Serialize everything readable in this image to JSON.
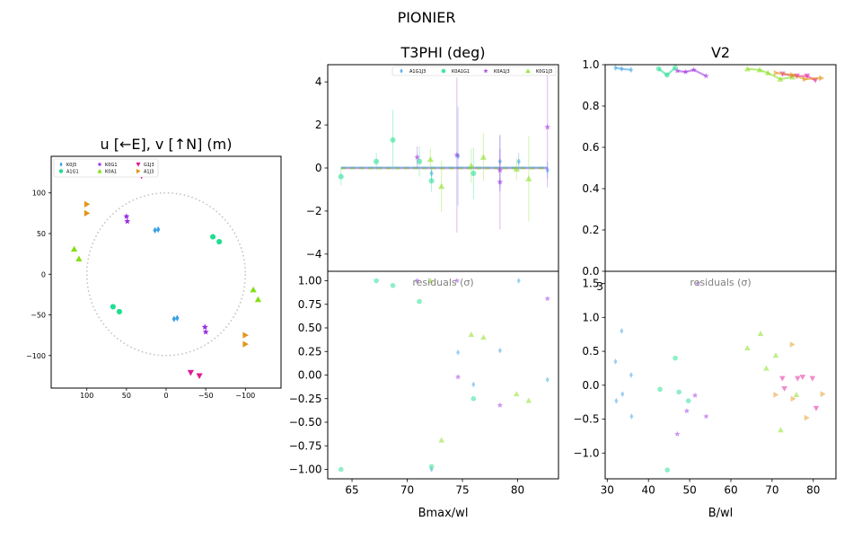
{
  "figure": {
    "title": "PIONIER"
  },
  "chart_data": [
    {
      "id": "uv",
      "type": "scatter",
      "title": "u [←E], v [↑N] (m)",
      "xlim": [
        145,
        -145
      ],
      "ylim": [
        -140,
        145
      ],
      "xticks": [
        "100",
        "50",
        "0",
        "−50",
        "−100"
      ],
      "xtick_values": [
        100,
        50,
        0,
        -50,
        -100
      ],
      "yticks": [
        "100",
        "50",
        "0",
        "−50",
        "−100"
      ],
      "ytick_values": [
        100,
        50,
        0,
        -50,
        -100
      ],
      "circle_radius": 100,
      "legend_position": "upper left",
      "series": [
        {
          "name": "K0J3",
          "marker": "diamond",
          "color": "#3aa0e6",
          "u": [
            14,
            10,
            -14,
            -10
          ],
          "v": [
            54,
            55,
            -54,
            -55
          ]
        },
        {
          "name": "A1G1",
          "marker": "circle",
          "color": "#1ddf8f",
          "u": [
            67,
            59,
            -59,
            -67
          ],
          "v": [
            -40,
            -46,
            46,
            40
          ]
        },
        {
          "name": "K0G1",
          "marker": "star",
          "color": "#9a2de0",
          "u": [
            49,
            50,
            -50,
            -49
          ],
          "v": [
            65,
            71,
            -71,
            -65
          ]
        },
        {
          "name": "K0A1",
          "marker": "triangle-up",
          "color": "#84de16",
          "u": [
            116,
            110,
            -110,
            -116
          ],
          "v": [
            31,
            19,
            -19,
            -31
          ]
        },
        {
          "name": "G1J3",
          "marker": "triangle-down",
          "color": "#e01a96",
          "u": [
            37,
            31,
            -31,
            -42
          ],
          "v": [
            125,
            121,
            -121,
            -125
          ]
        },
        {
          "name": "A1J3",
          "marker": "triangle-right",
          "color": "#e3951a",
          "u": [
            100,
            100,
            -100,
            -100
          ],
          "v": [
            86,
            75,
            -75,
            -86
          ]
        }
      ]
    },
    {
      "id": "t3phi",
      "type": "scatter",
      "title": "T3PHI (deg)",
      "ylim": [
        -4.8,
        4.8
      ],
      "yticks": [
        "4",
        "2",
        "0",
        "−2",
        "−4"
      ],
      "ytick_values": [
        4,
        2,
        0,
        -2,
        -4
      ],
      "legend_position": "upper right",
      "series": [
        {
          "name": "A1G1J3",
          "marker": "diamond",
          "color": "#3aa0e6",
          "x": [
            72.2,
            74.6,
            78.4,
            80.1,
            82.7
          ],
          "y": [
            -0.25,
            0.55,
            0.3,
            0.3,
            -0.1
          ],
          "err": [
            0.3,
            2.3,
            1.2,
            0.4,
            0.4
          ]
        },
        {
          "name": "K0A1G1",
          "marker": "circle",
          "color": "#1ddf8f",
          "x": [
            64.0,
            67.2,
            68.7,
            71.1,
            72.2,
            76.0
          ],
          "y": [
            -0.4,
            0.3,
            1.3,
            0.3,
            -0.6,
            -0.25
          ],
          "err": [
            0.4,
            0.4,
            1.4,
            0.7,
            0.5,
            1.2
          ]
        },
        {
          "name": "K0A1J3",
          "marker": "star",
          "color": "#9a2de0",
          "x": [
            70.9,
            74.5,
            78.4,
            78.4,
            82.7
          ],
          "y": [
            0.5,
            0.6,
            -0.1,
            -0.65,
            1.9
          ],
          "err": [
            0.5,
            3.6,
            1.0,
            2.2,
            2.8
          ]
        },
        {
          "name": "K0G1J3",
          "marker": "triangle-up",
          "color": "#84de16",
          "x": [
            72.1,
            73.1,
            75.8,
            76.9,
            79.9,
            81.0
          ],
          "y": [
            0.4,
            -0.85,
            0.1,
            0.5,
            -0.05,
            -0.5
          ],
          "err": [
            0.5,
            1.2,
            0.8,
            1.1,
            0.5,
            2.0
          ]
        }
      ],
      "model": {
        "y": 0
      }
    },
    {
      "id": "t3phi_resid",
      "type": "scatter",
      "ylabel_note": "residuals (σ)",
      "xlabel": "Bmax/wl",
      "xlim": [
        62.8,
        83.7
      ],
      "ylim": [
        -1.1,
        1.1
      ],
      "xticks": [
        "65",
        "70",
        "75",
        "80"
      ],
      "xtick_values": [
        65,
        70,
        75,
        80
      ],
      "yticks": [
        "1.00",
        "0.75",
        "0.50",
        "0.25",
        "0.00",
        "−0.25",
        "−0.50",
        "−0.75",
        "−1.00"
      ],
      "ytick_values": [
        1,
        0.75,
        0.5,
        0.25,
        0,
        -0.25,
        -0.5,
        -0.75,
        -1
      ],
      "series": [
        {
          "name": "A1G1J3",
          "marker": "diamond",
          "color": "#3aa0e6",
          "x": [
            72.2,
            74.6,
            76.0,
            78.4,
            80.1,
            82.7
          ],
          "y": [
            -1.0,
            0.24,
            -0.1,
            0.26,
            1.0,
            -0.05
          ]
        },
        {
          "name": "K0A1G1",
          "marker": "circle",
          "color": "#1ddf8f",
          "x": [
            64.0,
            67.2,
            68.7,
            71.1,
            72.2,
            76.0
          ],
          "y": [
            -1.0,
            1.0,
            0.95,
            0.78,
            -0.97,
            -0.25
          ]
        },
        {
          "name": "K0A1J3",
          "marker": "star",
          "color": "#9a2de0",
          "x": [
            70.9,
            74.5,
            74.6,
            78.4,
            82.7
          ],
          "y": [
            1.0,
            1.0,
            -0.02,
            -0.32,
            0.81
          ]
        },
        {
          "name": "K0G1J3",
          "marker": "triangle-up",
          "color": "#84de16",
          "x": [
            72.1,
            73.1,
            75.8,
            76.9,
            79.9,
            81.0
          ],
          "y": [
            1.0,
            -0.69,
            0.43,
            0.4,
            -0.2,
            -0.27
          ]
        }
      ]
    },
    {
      "id": "v2",
      "type": "scatter",
      "title": "V2",
      "ylim": [
        0.0,
        1.0
      ],
      "yticks": [
        "1.0",
        "0.8",
        "0.6",
        "0.4",
        "0.2",
        "0.0"
      ],
      "ytick_values": [
        1.0,
        0.8,
        0.6,
        0.4,
        0.2,
        0.0
      ],
      "series": [
        {
          "name": "K0J3",
          "marker": "diamond",
          "color": "#3aa0e6",
          "x": [
            32.0,
            33.5,
            35.8
          ],
          "y": [
            0.985,
            0.98,
            0.975
          ]
        },
        {
          "name": "A1G1",
          "marker": "circle",
          "color": "#1ddf8f",
          "x": [
            42.5,
            44.5,
            46.5
          ],
          "y": [
            0.98,
            0.95,
            0.985
          ]
        },
        {
          "name": "K0G1",
          "marker": "star",
          "color": "#9a2de0",
          "x": [
            47.0,
            49.0,
            51.0,
            54.0
          ],
          "y": [
            0.97,
            0.965,
            0.975,
            0.945
          ]
        },
        {
          "name": "K0A1",
          "marker": "triangle-up",
          "color": "#84de16",
          "x": [
            64.0,
            67.0,
            69.0,
            72.0,
            75.0
          ],
          "y": [
            0.98,
            0.975,
            0.96,
            0.93,
            0.94
          ]
        },
        {
          "name": "G1J3",
          "marker": "triangle-down",
          "color": "#e01a96",
          "x": [
            72.5,
            76.0,
            78.5,
            80.5
          ],
          "y": [
            0.955,
            0.945,
            0.945,
            0.925
          ]
        },
        {
          "name": "A1J3",
          "marker": "triangle-right",
          "color": "#e3951a",
          "x": [
            71.0,
            75.0,
            78.0,
            82.0
          ],
          "y": [
            0.96,
            0.95,
            0.93,
            0.935
          ]
        }
      ]
    },
    {
      "id": "v2_resid",
      "type": "scatter",
      "ylabel_note": "residuals (σ)",
      "xlabel": "B/wl",
      "xlim": [
        29.5,
        85.5
      ],
      "ylim": [
        -1.38,
        1.68
      ],
      "xticks": [
        "30",
        "40",
        "50",
        "60",
        "70",
        "80"
      ],
      "xtick_values": [
        30,
        40,
        50,
        60,
        70,
        80
      ],
      "yticks": [
        "1.5",
        "1.0",
        "0.5",
        "0.0",
        "−0.5",
        "−1.0"
      ],
      "ytick_values": [
        1.5,
        1.0,
        0.5,
        0.0,
        -0.5,
        -1.0
      ],
      "stray_label": "3",
      "series": [
        {
          "name": "K0J3",
          "marker": "diamond",
          "color": "#3aa0e6",
          "x": [
            32.0,
            33.5,
            35.8,
            32.2,
            33.7,
            35.9
          ],
          "y": [
            0.35,
            0.8,
            0.15,
            -0.23,
            -0.13,
            -0.46
          ]
        },
        {
          "name": "A1G1",
          "marker": "circle",
          "color": "#1ddf8f",
          "x": [
            46.5,
            42.8,
            44.6,
            47.4,
            49.7
          ],
          "y": [
            0.4,
            -0.06,
            -1.25,
            -0.1,
            -0.23
          ]
        },
        {
          "name": "K0G1",
          "marker": "star",
          "color": "#9a2de0",
          "x": [
            52.0,
            47.0,
            49.3,
            51.3,
            54.0
          ],
          "y": [
            1.5,
            -0.72,
            -0.38,
            -0.15,
            -0.46
          ]
        },
        {
          "name": "K0A1",
          "marker": "triangle-up",
          "color": "#84de16",
          "x": [
            64.0,
            67.2,
            68.6,
            70.9,
            72.1,
            75.9
          ],
          "y": [
            0.55,
            0.76,
            0.25,
            0.44,
            -0.66,
            -0.14
          ]
        },
        {
          "name": "G1J3",
          "marker": "triangle-down",
          "color": "#e01a96",
          "x": [
            72.5,
            73.0,
            76.2,
            77.4,
            79.8,
            80.7
          ],
          "y": [
            0.1,
            -0.05,
            0.1,
            0.12,
            0.1,
            -0.34
          ]
        },
        {
          "name": "A1J3",
          "marker": "triangle-right",
          "color": "#e3951a",
          "x": [
            70.9,
            74.9,
            75.1,
            78.4,
            82.3
          ],
          "y": [
            -0.14,
            0.6,
            -0.2,
            -0.48,
            -0.13
          ]
        }
      ]
    }
  ]
}
